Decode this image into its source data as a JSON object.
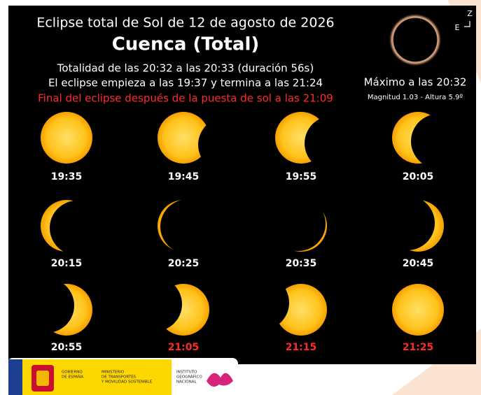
{
  "header": {
    "title": "Eclipse total de Sol de 12 de agosto de 2026",
    "location": "Cuenca (Total)",
    "totality": "Totalidad de las 20:32 a las 20:33 (duración 56s)",
    "span": "El eclipse empieza a las 19:37 y termina a las 21:24",
    "sunset_note": "Final del eclipse después de la puesta de sol a las 21:09",
    "sunset_note_color": "#ff2b2b"
  },
  "maximum": {
    "label": "Máximo a las 20:32",
    "details": "Magnitud 1.03 - Altura 5.9º",
    "north": "Z",
    "east": "E"
  },
  "phases": [
    {
      "time": "19:35",
      "color": "#ffffff"
    },
    {
      "time": "19:45",
      "color": "#ffffff"
    },
    {
      "time": "19:55",
      "color": "#ffffff"
    },
    {
      "time": "20:05",
      "color": "#ffffff"
    },
    {
      "time": "20:15",
      "color": "#ffffff"
    },
    {
      "time": "20:25",
      "color": "#ffffff"
    },
    {
      "time": "20:35",
      "color": "#ffffff"
    },
    {
      "time": "20:45",
      "color": "#ffffff"
    },
    {
      "time": "20:55",
      "color": "#ffffff"
    },
    {
      "time": "21:05",
      "color": "#ff2b2b"
    },
    {
      "time": "21:15",
      "color": "#ff2b2b"
    },
    {
      "time": "21:25",
      "color": "#ff2b2b"
    }
  ],
  "footer": {
    "government": [
      "GOBIERNO",
      "DE ESPAÑA"
    ],
    "ministry": [
      "MINISTERIO",
      "DE TRANSPORTES",
      "Y MOVILIDAD SOSTENIBLE"
    ],
    "institute": [
      "INSTITUTO",
      "GEOGRÁFICO",
      "NACIONAL"
    ]
  }
}
